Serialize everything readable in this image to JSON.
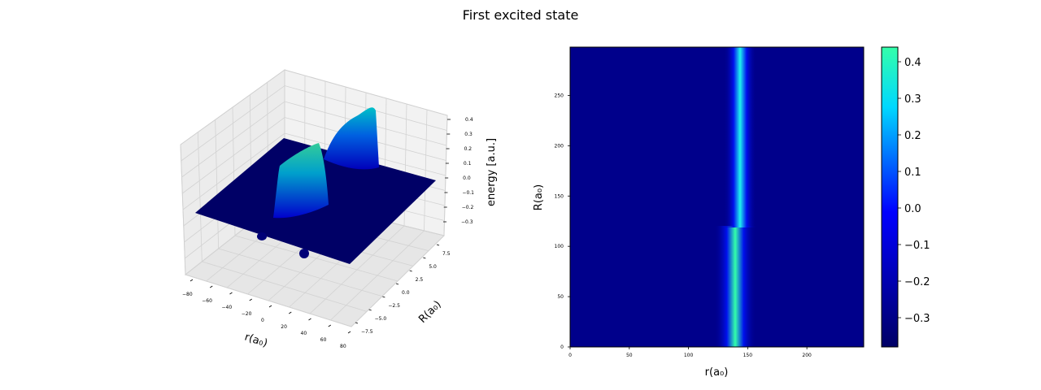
{
  "title": "First excited state",
  "chart_data": [
    {
      "type": "surface",
      "xlabel": "r(a₀)",
      "ylabel": "R(a₀)",
      "zlabel": "energy [a.u.]",
      "x_ticks": [
        "−80",
        "−60",
        "−40",
        "−20",
        "0",
        "20",
        "40",
        "60",
        "80"
      ],
      "y_ticks": [
        "−7.5",
        "−5.0",
        "−2.5",
        "0.0",
        "2.5",
        "5.0",
        "7.5"
      ],
      "z_ticks": [
        "−0.3",
        "−0.2",
        "−0.1",
        "0.0",
        "0.1",
        "0.2",
        "0.3",
        "0.4"
      ],
      "xlim": [
        -80,
        80
      ],
      "ylim": [
        -9,
        9
      ],
      "zlim": [
        -0.38,
        0.44
      ],
      "surface_features": [
        {
          "r_center": -5,
          "half_width": 4,
          "R_range": [
            -9,
            0
          ],
          "peak": 0.3
        },
        {
          "r_center": 5,
          "half_width": 4,
          "R_range": [
            0,
            9
          ],
          "peak": 0.43
        }
      ],
      "dip_value": -0.38,
      "baseline": 0.0,
      "colormap": [
        "#000066",
        "#0000ff",
        "#00e0ff",
        "#33ffaa"
      ]
    },
    {
      "type": "heatmap",
      "xlabel": "r(a₀)",
      "ylabel": "R(a₀)",
      "xlim": [
        0,
        248
      ],
      "ylim": [
        0,
        298
      ],
      "x_ticks": [
        0,
        50,
        100,
        150,
        200
      ],
      "y_ticks": [
        0,
        50,
        100,
        150,
        200,
        250
      ],
      "background_value": -0.33,
      "bands": [
        {
          "r_center": 140,
          "R_range": [
            0,
            118
          ],
          "peak": 0.44
        },
        {
          "r_center": 143,
          "R_range": [
            120,
            298
          ],
          "peak": 0.38
        }
      ],
      "colorbar": {
        "ticks": [
          "0.4",
          "0.3",
          "0.2",
          "0.1",
          "0.0",
          "−0.1",
          "−0.2",
          "−0.3"
        ],
        "tick_values": [
          0.4,
          0.3,
          0.2,
          0.1,
          0.0,
          -0.1,
          -0.2,
          -0.3
        ],
        "range": [
          -0.38,
          0.44
        ]
      },
      "colormap": [
        "#000066",
        "#0000ff",
        "#00e0ff",
        "#33ffaa"
      ]
    }
  ]
}
